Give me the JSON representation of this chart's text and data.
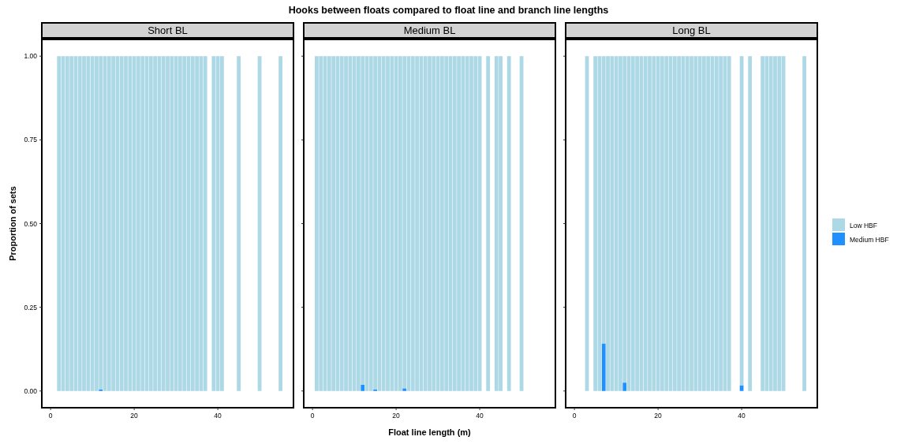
{
  "chart_data": [
    {
      "type": "bar",
      "stacked": true,
      "subtitle": "Short BL",
      "ylabel": "Proportion of sets",
      "x": [
        2,
        3,
        4,
        5,
        6,
        7,
        8,
        9,
        10,
        11,
        12,
        13,
        14,
        15,
        16,
        17,
        18,
        19,
        20,
        21,
        22,
        23,
        24,
        25,
        26,
        27,
        28,
        29,
        30,
        31,
        32,
        33,
        34,
        35,
        36,
        37,
        39,
        40,
        41,
        45,
        50,
        55
      ],
      "series": [
        {
          "color": "#1e90ff",
          "values": [
            null,
            null,
            null,
            null,
            null,
            null,
            null,
            null,
            null,
            null,
            0.005,
            null,
            null,
            null,
            null,
            null,
            null,
            null,
            null,
            null,
            null,
            null,
            null,
            null,
            null,
            null,
            null,
            null,
            null,
            null,
            null,
            null,
            null,
            null,
            null,
            null,
            null,
            null,
            null,
            null,
            null,
            null
          ]
        },
        {
          "color": "#add8e6",
          "values": [
            1,
            1,
            1,
            1,
            1,
            1,
            1,
            1,
            1,
            1,
            0.995,
            1,
            1,
            1,
            1,
            1,
            1,
            1,
            1,
            1,
            1,
            1,
            1,
            1,
            1,
            1,
            1,
            1,
            1,
            1,
            1,
            1,
            1,
            1,
            1,
            1,
            1,
            1,
            1,
            1,
            1,
            1
          ]
        }
      ],
      "xlim": [
        -2.1,
        58.1
      ],
      "xticks": [
        0,
        20,
        40
      ],
      "ylim": [
        -0.05,
        1.05
      ],
      "yticks": [
        {
          "value": 0,
          "label": "0.00"
        },
        {
          "value": 0.25,
          "label": "0.25"
        },
        {
          "value": 0.5,
          "label": "0.50"
        },
        {
          "value": 0.75,
          "label": "0.75"
        },
        {
          "value": 1,
          "label": "1.00"
        }
      ],
      "grid": false,
      "legend": false
    },
    {
      "type": "bar",
      "stacked": true,
      "title": "Hooks between floats compared to float line and branch line lengths",
      "subtitle": "Medium BL",
      "xlabel": "Float line length (m)",
      "x": [
        1,
        2,
        3,
        4,
        5,
        6,
        7,
        8,
        9,
        10,
        11,
        12,
        13,
        14,
        15,
        16,
        17,
        18,
        19,
        20,
        21,
        22,
        23,
        24,
        25,
        26,
        27,
        28,
        29,
        30,
        31,
        32,
        33,
        34,
        35,
        36,
        37,
        38,
        39,
        40,
        42,
        44,
        45,
        47,
        50
      ],
      "series": [
        {
          "color": "#1e90ff",
          "values": [
            null,
            null,
            null,
            null,
            null,
            null,
            null,
            null,
            null,
            null,
            null,
            0.019,
            null,
            null,
            0.005,
            null,
            null,
            null,
            null,
            null,
            null,
            0.008,
            null,
            null,
            null,
            null,
            null,
            null,
            null,
            null,
            null,
            null,
            null,
            null,
            null,
            null,
            null,
            null,
            null,
            null,
            null,
            null,
            null,
            null,
            null
          ]
        },
        {
          "color": "#add8e6",
          "values": [
            1,
            1,
            1,
            1,
            1,
            1,
            1,
            1,
            1,
            1,
            1,
            0.981,
            1,
            1,
            0.995,
            1,
            1,
            1,
            1,
            1,
            1,
            0.992,
            1,
            1,
            1,
            1,
            1,
            1,
            1,
            1,
            1,
            1,
            1,
            1,
            1,
            1,
            1,
            1,
            1,
            1,
            1,
            1,
            1,
            1,
            1
          ]
        }
      ],
      "xlim": [
        -2.1,
        58.1
      ],
      "xticks": [
        0,
        20,
        40
      ],
      "ylim": [
        -0.05,
        1.05
      ],
      "yticks": [
        {
          "value": 0,
          "label": null
        },
        {
          "value": 0.25,
          "label": null
        },
        {
          "value": 0.5,
          "label": null
        },
        {
          "value": 0.75,
          "label": null
        },
        {
          "value": 1,
          "label": null
        }
      ],
      "tick_labels": "x",
      "grid": false,
      "legend": false
    },
    {
      "type": "bar",
      "stacked": true,
      "subtitle": "Long BL",
      "x": [
        3,
        5,
        6,
        7,
        8,
        9,
        10,
        11,
        12,
        13,
        14,
        15,
        16,
        17,
        18,
        19,
        20,
        21,
        22,
        23,
        24,
        25,
        26,
        27,
        28,
        29,
        30,
        31,
        32,
        33,
        34,
        35,
        36,
        37,
        40,
        42,
        45,
        46,
        47,
        48,
        49,
        50,
        55
      ],
      "series": [
        {
          "name": "Medium HBF",
          "color": "#1e90ff",
          "values": [
            null,
            null,
            null,
            0.142,
            null,
            null,
            null,
            null,
            0.025,
            null,
            null,
            null,
            null,
            null,
            null,
            null,
            null,
            null,
            null,
            null,
            null,
            null,
            null,
            null,
            null,
            null,
            null,
            null,
            null,
            null,
            null,
            null,
            null,
            null,
            0.017,
            null,
            null,
            null,
            null,
            null,
            null,
            null,
            null
          ]
        },
        {
          "name": "Low HBF",
          "color": "#add8e6",
          "values": [
            1,
            1,
            1,
            0.858,
            1,
            1,
            1,
            1,
            0.975,
            1,
            1,
            1,
            1,
            1,
            1,
            1,
            1,
            1,
            1,
            1,
            1,
            1,
            1,
            1,
            1,
            1,
            1,
            1,
            1,
            1,
            1,
            1,
            1,
            1,
            0.983,
            1,
            1,
            1,
            1,
            1,
            1,
            1,
            1
          ]
        }
      ],
      "xlim": [
        -2.1,
        58.1
      ],
      "xticks": [
        0,
        20,
        40
      ],
      "ylim": [
        -0.05,
        1.05
      ],
      "yticks": [
        {
          "value": 0,
          "label": null
        },
        {
          "value": 0.25,
          "label": null
        },
        {
          "value": 0.5,
          "label": null
        },
        {
          "value": 0.75,
          "label": null
        },
        {
          "value": 1,
          "label": null
        }
      ],
      "tick_labels": "x",
      "grid": false,
      "legend": "right"
    }
  ]
}
